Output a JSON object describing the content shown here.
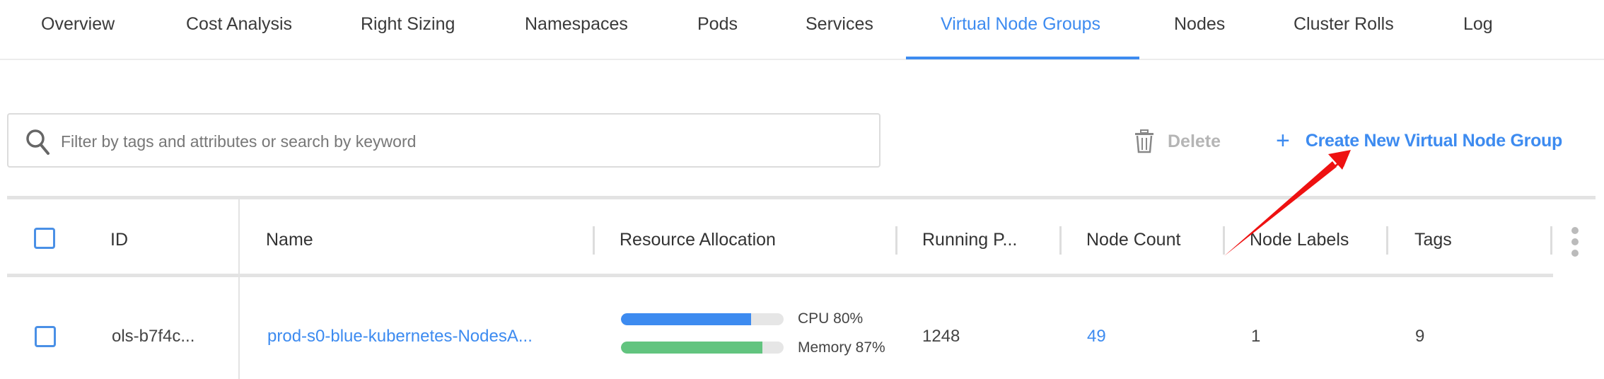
{
  "tabs": [
    {
      "label": "Overview"
    },
    {
      "label": "Cost Analysis"
    },
    {
      "label": "Right Sizing"
    },
    {
      "label": "Namespaces"
    },
    {
      "label": "Pods"
    },
    {
      "label": "Services"
    },
    {
      "label": "Virtual Node Groups",
      "active": true
    },
    {
      "label": "Nodes"
    },
    {
      "label": "Cluster Rolls"
    },
    {
      "label": "Log"
    }
  ],
  "search": {
    "placeholder": "Filter by tags and attributes or search by keyword",
    "value": ""
  },
  "toolbar": {
    "delete_label": "Delete",
    "create_label": "Create New Virtual Node Group"
  },
  "table": {
    "headers": [
      "ID",
      "Name",
      "Resource Allocation",
      "Running P...",
      "Node Count",
      "Node Labels",
      "Tags"
    ],
    "rows": [
      {
        "id": "ols-b7f4c...",
        "name": "prod-s0-blue-kubernetes-NodesA...",
        "cpu_label": "CPU 80%",
        "cpu": 80,
        "memory_label": "Memory 87%",
        "memory": 87,
        "running_pods": "1248",
        "node_count": "49",
        "node_labels": "1",
        "tags": "9"
      }
    ]
  },
  "colors": {
    "accent": "#3d8bf0",
    "cpu_bar": "#3d8bf0",
    "memory_bar": "#62c47f",
    "annotation_arrow": "#ee1111"
  },
  "icons": [
    "search-icon",
    "trash-icon",
    "plus-icon",
    "kebab-menu-icon",
    "annotation-arrow"
  ]
}
